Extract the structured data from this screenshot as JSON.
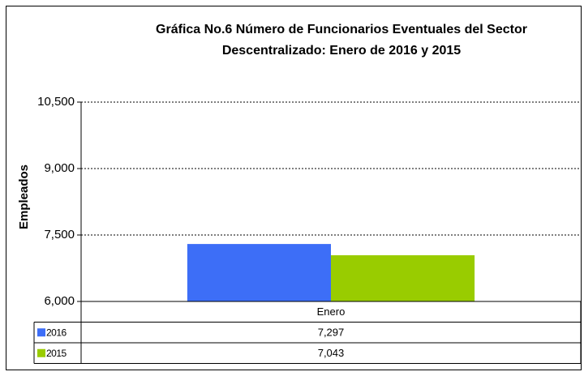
{
  "chart_data": {
    "type": "bar",
    "title": "Gráfica No.6 Número de Funcionarios Eventuales del Sector Descentralizado: Enero de 2016 y 2015",
    "y_label": "Empleados",
    "categories": [
      "Enero"
    ],
    "series": [
      {
        "name": "2016",
        "color": "#3d6ef7",
        "values": [
          7297
        ],
        "value_labels": [
          "7,297"
        ]
      },
      {
        "name": "2015",
        "color": "#99cc00",
        "values": [
          7043
        ],
        "value_labels": [
          "7,043"
        ]
      }
    ],
    "ylim": [
      6000,
      10500
    ],
    "yticks": [
      {
        "value": 6000,
        "label": "6,000"
      },
      {
        "value": 7500,
        "label": "7,500"
      },
      {
        "value": 9000,
        "label": "9,000"
      },
      {
        "value": 10500,
        "label": "10,500"
      }
    ],
    "grid": true
  }
}
